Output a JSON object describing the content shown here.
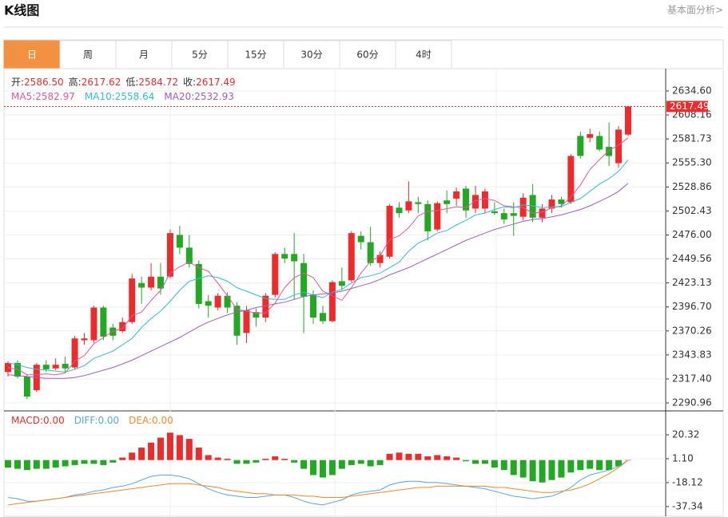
{
  "header": {
    "title": "K线图",
    "link": "基本面分析>"
  },
  "tabs": {
    "items": [
      "日",
      "周",
      "月",
      "5分",
      "15分",
      "30分",
      "60分",
      "4时"
    ],
    "active": 0
  },
  "chart_data": [
    {
      "type": "candlestick",
      "up_color": "#ee2b2b",
      "down_color": "#22a822",
      "ylim": [
        2282.2,
        2658.3
      ],
      "yticks": [
        {
          "value": 2634.6,
          "label": "2634.60"
        },
        2608.16,
        2581.73,
        {
          "value": 2555.3,
          "label": "2555.30"
        },
        2528.86,
        2502.43,
        {
          "value": 2476,
          "label": "2476.00"
        },
        2449.56,
        2423.13,
        {
          "value": 2396.7,
          "label": "2396.70"
        },
        2370.26,
        2343.83,
        {
          "value": 2317.4,
          "label": "2317.40"
        },
        2290.96
      ],
      "grid": true,
      "last_price": {
        "value": 2617.49,
        "label": "2617.49"
      },
      "info": [
        {
          "label": "开:",
          "value": "2586.50"
        },
        {
          "label": "高:",
          "value": "2617.62"
        },
        {
          "label": "低:",
          "value": "2584.72"
        },
        {
          "label": "收:",
          "value": "2617.49"
        }
      ],
      "candles": {
        "open": [
          2325,
          2335,
          2320,
          2305,
          2333,
          2329,
          2334,
          2330,
          2360,
          2360,
          2396,
          2374,
          2370,
          2380,
          2423,
          2418,
          2430,
          2430,
          2476,
          2462,
          2444,
          2403,
          2396,
          2409,
          2398,
          2368,
          2391,
          2385,
          2410,
          2455,
          2455,
          2445,
          2410,
          2390,
          2381,
          2425,
          2426,
          2475,
          2468,
          2445,
          2452,
          2506,
          2503,
          2512,
          2510,
          2482,
          2514,
          2516,
          2527,
          2505,
          2505,
          2502,
          2500,
          2500,
          2496,
          2520,
          2495,
          2505,
          2515,
          2512,
          2585,
          2583,
          2585,
          2573,
          2555,
          2586.5
        ],
        "high": [
          2337,
          2338,
          2322,
          2335,
          2338,
          2340,
          2342,
          2365,
          2368,
          2398,
          2398,
          2378,
          2385,
          2433,
          2430,
          2445,
          2445,
          2482,
          2486,
          2476,
          2448,
          2410,
          2412,
          2413,
          2402,
          2398,
          2395,
          2412,
          2457,
          2462,
          2478,
          2455,
          2415,
          2398,
          2426,
          2440,
          2480,
          2480,
          2485,
          2458,
          2510,
          2512,
          2535,
          2518,
          2514,
          2513,
          2525,
          2528,
          2530,
          2530,
          2527,
          2512,
          2505,
          2512,
          2522,
          2532,
          2510,
          2520,
          2518,
          2565,
          2590,
          2593,
          2590,
          2600,
          2596,
          2617.62
        ],
        "low": [
          2320,
          2318,
          2295,
          2303,
          2325,
          2327,
          2325,
          2328,
          2355,
          2357,
          2360,
          2360,
          2368,
          2378,
          2400,
          2415,
          2410,
          2428,
          2455,
          2440,
          2395,
          2385,
          2393,
          2390,
          2355,
          2357,
          2375,
          2380,
          2407,
          2445,
          2405,
          2368,
          2378,
          2378,
          2380,
          2415,
          2424,
          2460,
          2442,
          2440,
          2450,
          2495,
          2500,
          2500,
          2470,
          2480,
          2500,
          2508,
          2495,
          2500,
          2500,
          2498,
          2488,
          2475,
          2492,
          2490,
          2490,
          2500,
          2506,
          2510,
          2560,
          2578,
          2568,
          2552,
          2550,
          2584.72
        ],
        "close": [
          2335,
          2320,
          2298,
          2333,
          2328,
          2333,
          2329,
          2362,
          2362,
          2396,
          2364,
          2365,
          2380,
          2428,
          2418,
          2430,
          2417,
          2478,
          2462,
          2444,
          2400,
          2398,
          2409,
          2396,
          2365,
          2393,
          2385,
          2409,
          2455,
          2450,
          2447,
          2408,
          2385,
          2381,
          2424,
          2420,
          2478,
          2468,
          2445,
          2454,
          2508,
          2500,
          2513,
          2510,
          2480,
          2511,
          2510,
          2524,
          2503,
          2520,
          2524,
          2500,
          2493,
          2497,
          2517,
          2495,
          2505,
          2515,
          2510,
          2563,
          2563,
          2587,
          2570,
          2563,
          2592,
          2617.49
        ]
      },
      "series": [
        {
          "name": "MA5:",
          "legend_value": "2582.97",
          "color": "#e8559a",
          "values": [
            2330,
            2328,
            2322,
            2322,
            2323,
            2322,
            2324,
            2337,
            2343,
            2356,
            2363,
            2370,
            2373,
            2387,
            2391,
            2404,
            2415,
            2434,
            2441,
            2446,
            2440,
            2436,
            2423,
            2409,
            2394,
            2392,
            2390,
            2390,
            2401,
            2418,
            2429,
            2434,
            2429,
            2414,
            2409,
            2404,
            2418,
            2434,
            2447,
            2453,
            2471,
            2475,
            2484,
            2497,
            2502,
            2503,
            2505,
            2507,
            2506,
            2514,
            2516,
            2514,
            2508,
            2507,
            2506,
            2500,
            2501,
            2506,
            2508,
            2518,
            2531,
            2548,
            2559,
            2569,
            2575,
            2582.97
          ]
        },
        {
          "name": "MA10:",
          "legend_value": "2558.64",
          "color": "#32bcd8",
          "values": [
            2335,
            2333,
            2330,
            2328,
            2327,
            2326,
            2325,
            2328,
            2332,
            2340,
            2344,
            2348,
            2355,
            2362,
            2374,
            2384,
            2392,
            2403,
            2415,
            2425,
            2428,
            2431,
            2429,
            2425,
            2418,
            2414,
            2410,
            2406,
            2405,
            2405,
            2410,
            2413,
            2410,
            2407,
            2413,
            2416,
            2423,
            2429,
            2431,
            2434,
            2440,
            2446,
            2458,
            2467,
            2472,
            2478,
            2481,
            2487,
            2492,
            2498,
            2500,
            2504,
            2507,
            2506,
            2509,
            2508,
            2506,
            2507,
            2507,
            2512,
            2516,
            2524,
            2532,
            2538,
            2546,
            2558.64
          ]
        },
        {
          "name": "MA20:",
          "legend_value": "2532.93",
          "color": "#a35bc6",
          "values": [
            2322,
            2321,
            2320,
            2319,
            2318,
            2318,
            2318,
            2319,
            2321,
            2324,
            2327,
            2330,
            2334,
            2338,
            2343,
            2348,
            2353,
            2358,
            2363,
            2369,
            2375,
            2380,
            2384,
            2388,
            2391,
            2393,
            2396,
            2398,
            2400,
            2402,
            2405,
            2408,
            2410,
            2411,
            2412,
            2414,
            2417,
            2420,
            2423,
            2427,
            2432,
            2436,
            2440,
            2445,
            2450,
            2455,
            2460,
            2465,
            2470,
            2474,
            2478,
            2482,
            2485,
            2488,
            2491,
            2493,
            2494,
            2496,
            2498,
            2501,
            2504,
            2508,
            2513,
            2518,
            2524,
            2532.93
          ]
        }
      ]
    },
    {
      "type": "macd",
      "ylim": [
        -45.7,
        39.5
      ],
      "yticks": [
        20.32,
        {
          "value": 1.1,
          "label": "1.10"
        },
        -18.12,
        -37.34
      ],
      "grid": true,
      "up_color": "#ee2b2b",
      "down_color": "#22a822",
      "histogram": {
        "name": "MACD:",
        "legend_value": "0.00",
        "color": "#ee2b2b",
        "values": [
          -6,
          -7,
          -8,
          -7,
          -7,
          -6,
          -5,
          -4,
          -3,
          -3,
          -4,
          -2,
          2,
          6,
          10,
          14,
          18,
          22,
          20,
          17,
          10,
          4,
          2,
          1,
          -3,
          -3,
          -2,
          1,
          3,
          1,
          -2,
          -7,
          -12,
          -14,
          -12,
          -7,
          -4,
          -3,
          -5,
          -4,
          5,
          6,
          5,
          5,
          3,
          4,
          3,
          2,
          -1,
          -3,
          -3,
          -6,
          -8,
          -12,
          -14,
          -17,
          -18,
          -16,
          -14,
          -10,
          -8,
          -7,
          -8,
          -8,
          -5,
          0
        ]
      },
      "series": [
        {
          "name": "DIFF:",
          "legend_value": "0.00",
          "color": "#55a6e8",
          "values": [
            -30,
            -31,
            -33,
            -33,
            -32,
            -31,
            -30,
            -28,
            -27,
            -25,
            -24,
            -22,
            -21,
            -19,
            -16,
            -13,
            -12,
            -12,
            -13,
            -15,
            -19,
            -23,
            -26,
            -28,
            -29,
            -30,
            -30,
            -29,
            -28,
            -28,
            -30,
            -33,
            -35,
            -36,
            -34,
            -32,
            -28,
            -26,
            -25,
            -24,
            -20,
            -18,
            -17,
            -17,
            -18,
            -18,
            -19,
            -20,
            -21,
            -22,
            -23,
            -25,
            -27,
            -29,
            -30,
            -31,
            -30,
            -29,
            -26,
            -22,
            -16,
            -12,
            -10,
            -8,
            -5,
            0
          ]
        },
        {
          "name": "DEA:",
          "legend_value": "0.00",
          "color": "#f08a26",
          "values": [
            -36,
            -35,
            -34,
            -33,
            -32,
            -31,
            -30,
            -29,
            -28,
            -27,
            -26,
            -25,
            -24,
            -23,
            -22,
            -21,
            -20,
            -19,
            -19,
            -19,
            -20,
            -21,
            -22,
            -24,
            -25,
            -26,
            -27,
            -27,
            -28,
            -28,
            -28,
            -29,
            -29,
            -30,
            -30,
            -30,
            -29,
            -28,
            -27,
            -26,
            -25,
            -24,
            -23,
            -22,
            -22,
            -21,
            -21,
            -21,
            -21,
            -21,
            -21,
            -22,
            -22,
            -23,
            -24,
            -25,
            -26,
            -26,
            -25,
            -24,
            -22,
            -19,
            -15,
            -11,
            -6,
            0
          ]
        }
      ]
    }
  ]
}
